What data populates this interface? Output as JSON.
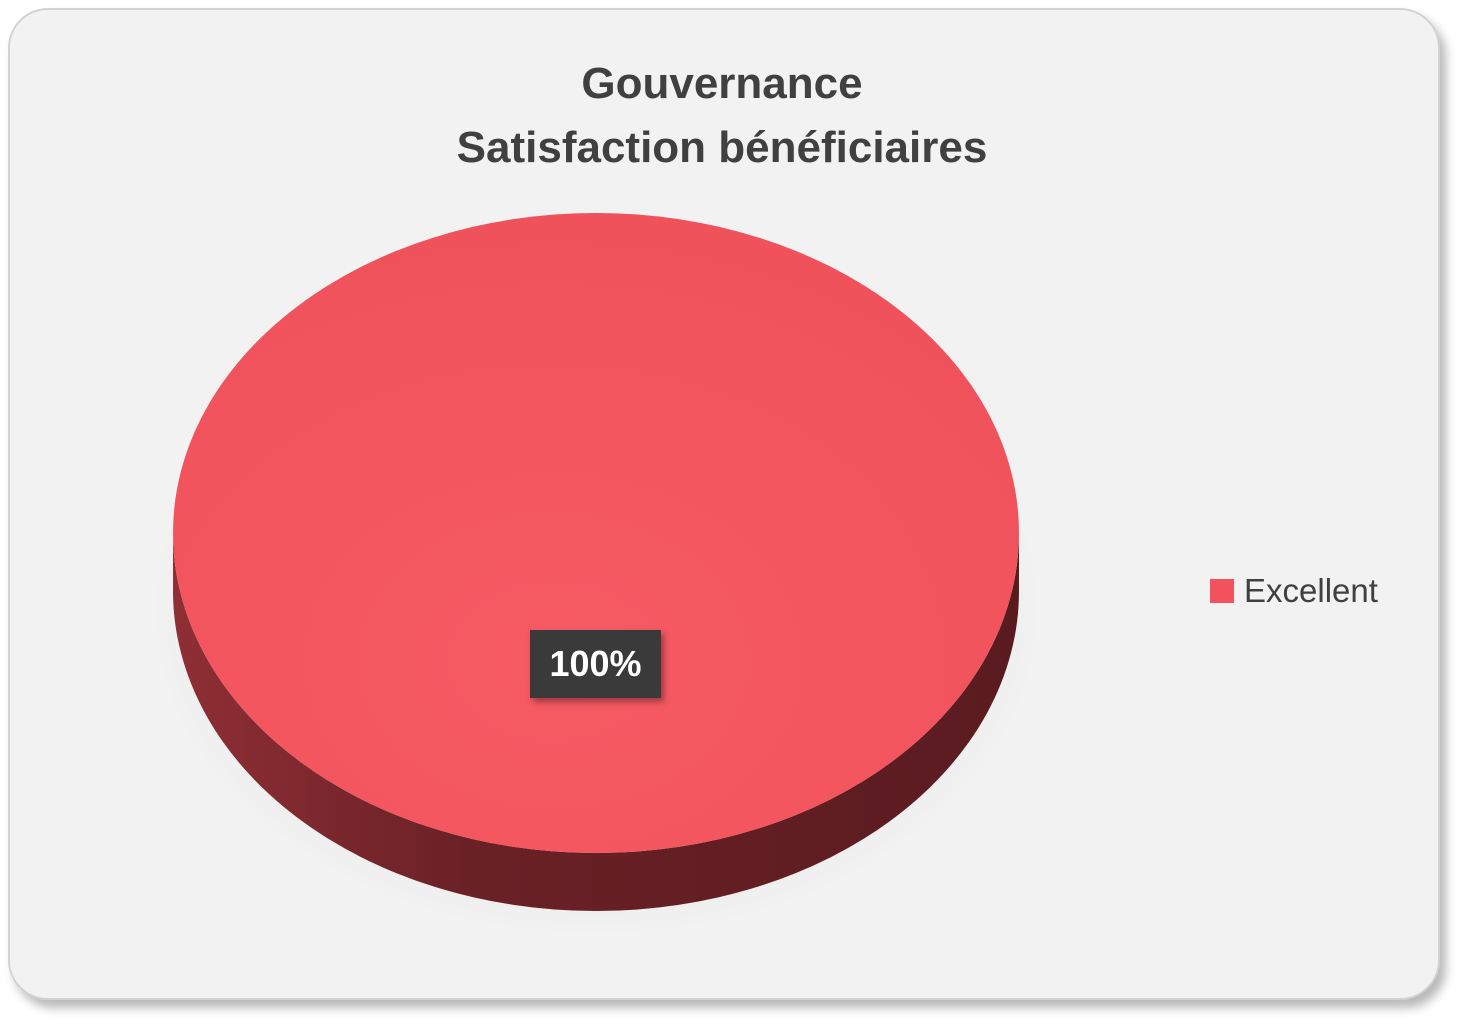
{
  "chart_data": {
    "type": "pie",
    "title": [
      "Gouvernance",
      "Satisfaction bénéficiaires"
    ],
    "categories": [
      "Excellent"
    ],
    "values": [
      100
    ],
    "data_labels": [
      "100%"
    ],
    "legend": {
      "placement": "right",
      "entries": [
        {
          "name": "Excellent",
          "color": "#f2525c"
        }
      ]
    },
    "style": "3d-pie"
  },
  "colors": {
    "slice_top": "#f2525c",
    "slice_side": "#6b2025",
    "background": "#f2f2f2",
    "label_bg": "#3a3a3a"
  }
}
